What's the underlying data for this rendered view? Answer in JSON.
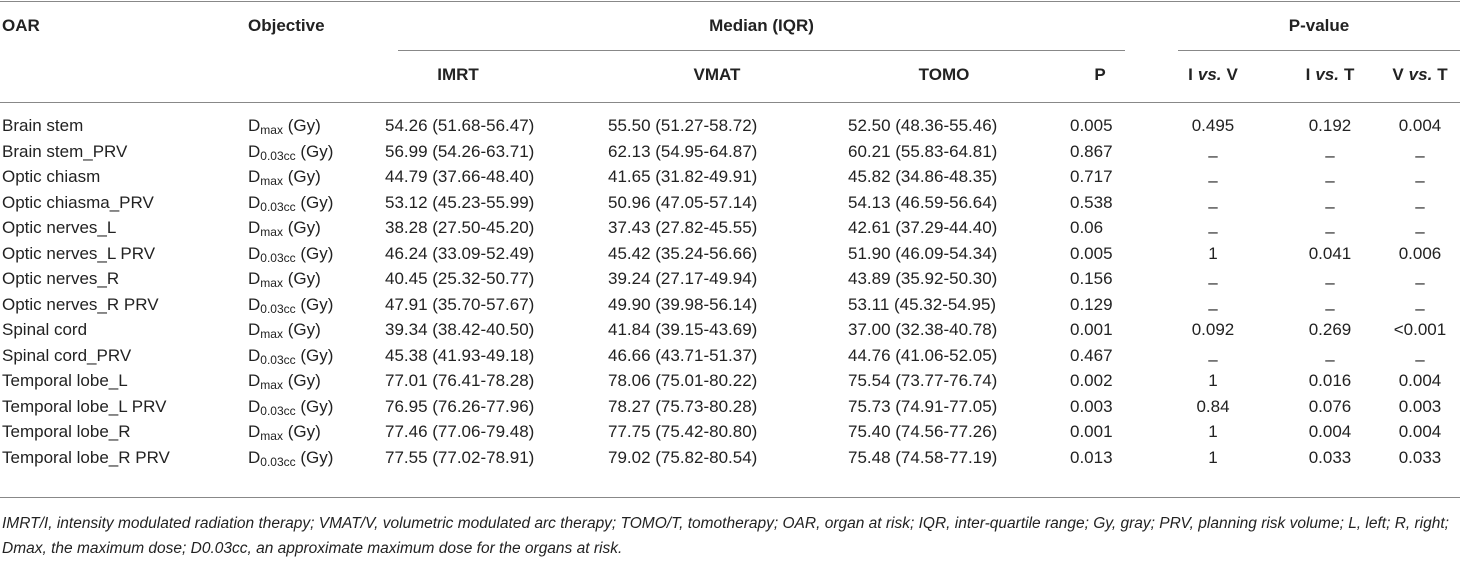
{
  "header": {
    "oar": "OAR",
    "objective": "Objective",
    "median": "Median (IQR)",
    "pvalue": "P-value",
    "columns": [
      "IMRT",
      "VMAT",
      "TOMO",
      "P",
      [
        "I",
        "vs.",
        "V"
      ],
      [
        "I",
        "vs.",
        "T"
      ],
      [
        "V",
        "vs.",
        "T"
      ]
    ]
  },
  "table": {
    "rows": [
      [
        "Brain stem",
        {
          "base": "D",
          "sub": "max",
          "unit": "(Gy)"
        },
        "54.26 (51.68-56.47)",
        "55.50 (51.27-58.72)",
        "52.50 (48.36-55.46)",
        "0.005",
        "0.495",
        "0.192",
        "0.004"
      ],
      [
        "Brain stem_PRV",
        {
          "base": "D",
          "sub": "0.03cc",
          "unit": "(Gy)"
        },
        "56.99 (54.26-63.71)",
        "62.13 (54.95-64.87)",
        "60.21 (55.83-64.81)",
        "0.867",
        "–",
        "–",
        "–"
      ],
      [
        "Optic chiasm",
        {
          "base": "D",
          "sub": "max",
          "unit": "(Gy)"
        },
        "44.79 (37.66-48.40)",
        "41.65 (31.82-49.91)",
        "45.82 (34.86-48.35)",
        "0.717",
        "–",
        "–",
        "–"
      ],
      [
        "Optic chiasma_PRV",
        {
          "base": "D",
          "sub": "0.03cc",
          "unit": "(Gy)"
        },
        "53.12 (45.23-55.99)",
        "50.96 (47.05-57.14)",
        "54.13 (46.59-56.64)",
        "0.538",
        "–",
        "–",
        "–"
      ],
      [
        "Optic nerves_L",
        {
          "base": "D",
          "sub": "max",
          "unit": "(Gy)"
        },
        "38.28 (27.50-45.20)",
        "37.43 (27.82-45.55)",
        "42.61 (37.29-44.40)",
        "0.06",
        "–",
        "–",
        "–"
      ],
      [
        "Optic nerves_L PRV",
        {
          "base": "D",
          "sub": "0.03cc",
          "unit": "(Gy)"
        },
        "46.24 (33.09-52.49)",
        "45.42 (35.24-56.66)",
        "51.90 (46.09-54.34)",
        "0.005",
        "1",
        "0.041",
        "0.006"
      ],
      [
        "Optic nerves_R",
        {
          "base": "D",
          "sub": "max",
          "unit": "(Gy)"
        },
        "40.45 (25.32-50.77)",
        "39.24 (27.17-49.94)",
        "43.89 (35.92-50.30)",
        "0.156",
        "–",
        "–",
        "–"
      ],
      [
        "Optic nerves_R PRV",
        {
          "base": "D",
          "sub": "0.03cc",
          "unit": "(Gy)"
        },
        "47.91 (35.70-57.67)",
        "49.90 (39.98-56.14)",
        "53.11 (45.32-54.95)",
        "0.129",
        "–",
        "–",
        "–"
      ],
      [
        "Spinal cord",
        {
          "base": "D",
          "sub": "max",
          "unit": "(Gy)"
        },
        "39.34 (38.42-40.50)",
        "41.84 (39.15-43.69)",
        "37.00 (32.38-40.78)",
        "0.001",
        "0.092",
        "0.269",
        "<0.001"
      ],
      [
        "Spinal cord_PRV",
        {
          "base": "D",
          "sub": "0.03cc",
          "unit": "(Gy)"
        },
        "45.38 (41.93-49.18)",
        "46.66 (43.71-51.37)",
        "44.76 (41.06-52.05)",
        "0.467",
        "–",
        "–",
        "–"
      ],
      [
        "Temporal lobe_L",
        {
          "base": "D",
          "sub": "max",
          "unit": "(Gy)"
        },
        "77.01 (76.41-78.28)",
        "78.06 (75.01-80.22)",
        "75.54 (73.77-76.74)",
        "0.002",
        "1",
        "0.016",
        "0.004"
      ],
      [
        "Temporal lobe_L PRV",
        {
          "base": "D",
          "sub": "0.03cc",
          "unit": "(Gy)"
        },
        "76.95 (76.26-77.96)",
        "78.27 (75.73-80.28)",
        "75.73 (74.91-77.05)",
        "0.003",
        "0.84",
        "0.076",
        "0.003"
      ],
      [
        "Temporal lobe_R",
        {
          "base": "D",
          "sub": "max",
          "unit": "(Gy)"
        },
        "77.46 (77.06-79.48)",
        "77.75 (75.42-80.80)",
        "75.40 (74.56-77.26)",
        "0.001",
        "1",
        "0.004",
        "0.004"
      ],
      [
        "Temporal lobe_R PRV",
        {
          "base": "D",
          "sub": "0.03cc",
          "unit": "(Gy)"
        },
        "77.55 (77.02-78.91)",
        "79.02 (75.82-80.54)",
        "75.48 (74.58-77.19)",
        "0.013",
        "1",
        "0.033",
        "0.033"
      ]
    ]
  },
  "footnote": "IMRT/I, intensity modulated radiation therapy; VMAT/V, volumetric modulated arc therapy; TOMO/T, tomotherapy; OAR, organ at risk; IQR, inter-quartile range; Gy, gray; PRV, planning risk volume; L, left; R, right; Dmax, the maximum dose; D0.03cc, an approximate maximum dose for the organs at risk."
}
